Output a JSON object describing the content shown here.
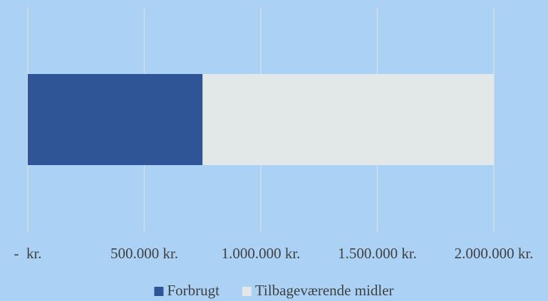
{
  "chart_data": {
    "type": "stacked-barh",
    "categories": [
      null
    ],
    "series": [
      {
        "name": "Forbrugt",
        "color": "#2f5597",
        "values": [
          750000
        ]
      },
      {
        "name": "Tilbageværende midler",
        "color": "#e2e8e8",
        "values": [
          1250000
        ]
      }
    ],
    "xlim": [
      0,
      2000000
    ],
    "xticks": [
      {
        "value": 0,
        "label": "-  kr."
      },
      {
        "value": 500000,
        "label": "500.000 kr."
      },
      {
        "value": 1000000,
        "label": "1.000.000 kr."
      },
      {
        "value": 1500000,
        "label": "1.500.000 kr."
      },
      {
        "value": 2000000,
        "label": "2.000.000 kr."
      }
    ],
    "grid": true,
    "legend": "bottom"
  }
}
